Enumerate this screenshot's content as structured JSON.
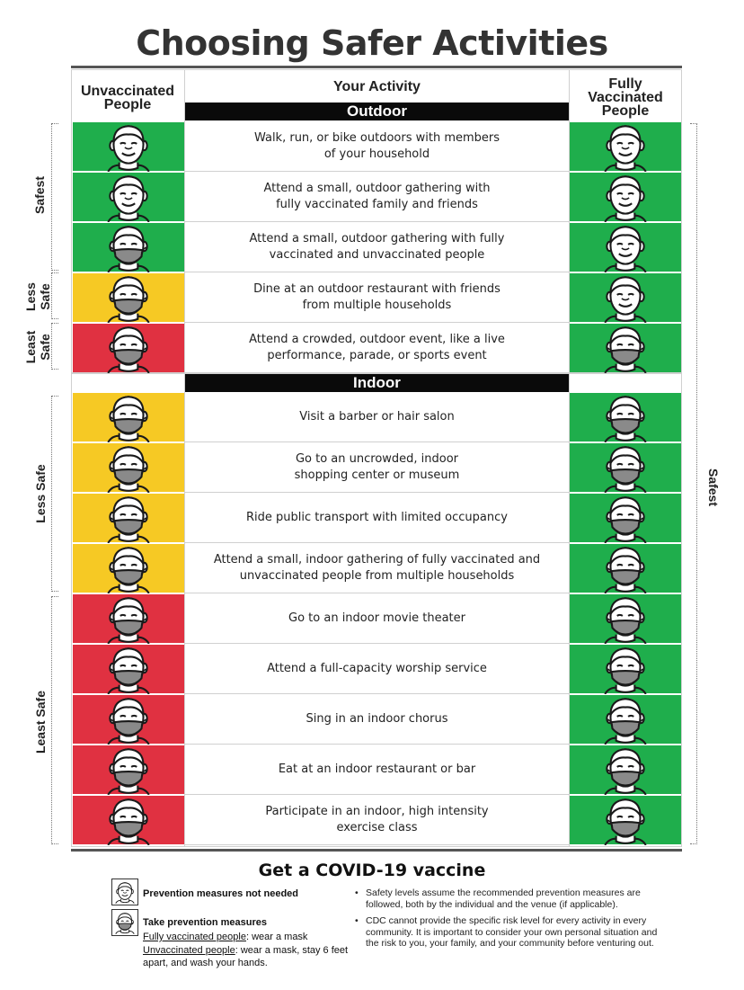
{
  "title": "Choosing Safer Activities",
  "headers": {
    "unvaccinated": [
      "Unvaccinated",
      "People"
    ],
    "activity": "Your Activity",
    "vaccinated": [
      "Fully",
      "Vaccinated",
      "People"
    ]
  },
  "sections": {
    "outdoor": "Outdoor",
    "indoor": "Indoor"
  },
  "colors": {
    "green": "#1fae4c",
    "yellow": "#f6c924",
    "red": "#e03141"
  },
  "outdoor_rows": [
    {
      "text": [
        "Walk, run, or bike outdoors with members",
        "of your household"
      ],
      "left_color": "green",
      "left_face": "no-mask-smile-icon",
      "right_color": "green",
      "right_face": "no-mask-smile-icon"
    },
    {
      "text": [
        "Attend a small, outdoor gathering with",
        "fully vaccinated family and friends"
      ],
      "left_color": "green",
      "left_face": "no-mask-smile-icon",
      "right_color": "green",
      "right_face": "no-mask-smile-icon"
    },
    {
      "text": [
        "Attend a small, outdoor gathering with fully",
        "vaccinated and unvaccinated people"
      ],
      "left_color": "green",
      "left_face": "masked-face-icon",
      "right_color": "green",
      "right_face": "no-mask-smile-icon"
    },
    {
      "text": [
        "Dine at an outdoor restaurant with friends",
        "from multiple households"
      ],
      "left_color": "yellow",
      "left_face": "masked-face-icon",
      "right_color": "green",
      "right_face": "no-mask-smile-icon"
    },
    {
      "text": [
        "Attend a crowded, outdoor event, like a live",
        "performance, parade, or sports event"
      ],
      "left_color": "red",
      "left_face": "masked-face-icon",
      "right_color": "green",
      "right_face": "masked-face-icon"
    }
  ],
  "indoor_rows": [
    {
      "text": [
        "Visit a barber or hair salon"
      ],
      "left_color": "yellow",
      "right_color": "green"
    },
    {
      "text": [
        "Go to an uncrowded, indoor",
        "shopping center or museum"
      ],
      "left_color": "yellow",
      "right_color": "green"
    },
    {
      "text": [
        "Ride public transport with limited occupancy"
      ],
      "left_color": "yellow",
      "right_color": "green"
    },
    {
      "text": [
        "Attend a small, indoor gathering of fully vaccinated and",
        "unvaccinated people from multiple households"
      ],
      "left_color": "yellow",
      "right_color": "green"
    },
    {
      "text": [
        "Go to an indoor movie theater"
      ],
      "left_color": "red",
      "right_color": "green"
    },
    {
      "text": [
        "Attend a full-capacity worship service"
      ],
      "left_color": "red",
      "right_color": "green"
    },
    {
      "text": [
        "Sing in an indoor chorus"
      ],
      "left_color": "red",
      "right_color": "green"
    },
    {
      "text": [
        "Eat at an indoor restaurant or bar"
      ],
      "left_color": "red",
      "right_color": "green"
    },
    {
      "text": [
        "Participate in an indoor, high intensity",
        "exercise class"
      ],
      "left_color": "red",
      "right_color": "green"
    }
  ],
  "side_labels": {
    "safest": "Safest",
    "less_safe_outdoor": [
      "Less",
      "Safe"
    ],
    "least_safe_outdoor": [
      "Least",
      "Safe"
    ],
    "less_safe_indoor": "Less Safe",
    "least_safe_indoor": "Least Safe",
    "right_safest": "Safest"
  },
  "footer": {
    "vaccine": "Get a COVID-19 vaccine",
    "legend_no_mask": "Prevention measures not needed",
    "legend_mask": "Take prevention measures",
    "fully_vaccinated_label": "Fully vaccinated people",
    "fully_vaccinated_rest": ": wear a mask",
    "unvaccinated_label": "Unvaccinated people",
    "unvaccinated_rest": ": wear a mask, stay 6 feet",
    "unvaccinated_rest2": "apart, and wash your hands.",
    "bullets": [
      "Safety levels assume the recommended prevention measures are followed, both by the individual and the venue (if applicable).",
      "CDC cannot provide the specific risk level for every activity in every community. It is important to consider your own personal situation and the risk to you, your family, and your community before venturing out."
    ]
  }
}
